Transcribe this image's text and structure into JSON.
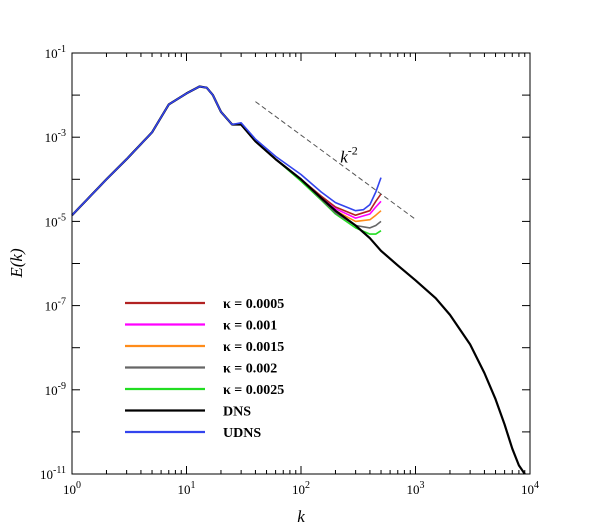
{
  "chart_data": {
    "type": "line",
    "xlabel": "k",
    "ylabel": "E(k)",
    "xscale": "log",
    "yscale": "log",
    "xlim": [
      1,
      10000
    ],
    "ylim": [
      1e-11,
      0.1
    ],
    "x_tick_labels": [
      {
        "value": 1,
        "base": "10",
        "exp": "0"
      },
      {
        "value": 10,
        "base": "10",
        "exp": "1"
      },
      {
        "value": 100,
        "base": "10",
        "exp": "2"
      },
      {
        "value": 1000,
        "base": "10",
        "exp": "3"
      },
      {
        "value": 10000,
        "base": "10",
        "exp": "4"
      }
    ],
    "y_tick_labels": [
      {
        "value": 1e-11,
        "base": "10",
        "exp": "-11"
      },
      {
        "value": 1e-09,
        "base": "10",
        "exp": "-9"
      },
      {
        "value": 1e-07,
        "base": "10",
        "exp": "-7"
      },
      {
        "value": 1e-05,
        "base": "10",
        "exp": "-5"
      },
      {
        "value": 0.001,
        "base": "10",
        "exp": "-3"
      },
      {
        "value": 0.1,
        "base": "10",
        "exp": "-1"
      }
    ],
    "grid": false,
    "legend_position": "lower-left",
    "reference_line": {
      "label_base": "k",
      "label_exp": "-2",
      "x": [
        40,
        1000
      ],
      "y": [
        0.007,
        1.12e-05
      ],
      "style": "dashed"
    },
    "series": [
      {
        "name": "κ = 0.0005",
        "color": "#b22222",
        "x": [
          1,
          2,
          3,
          5,
          7,
          10,
          13,
          15,
          17,
          20,
          25,
          30,
          40,
          60,
          100,
          150,
          200,
          300,
          400,
          450,
          500
        ],
        "y": [
          1.4e-05,
          0.0001,
          0.0003,
          0.0013,
          0.006,
          0.011,
          0.016,
          0.015,
          0.01,
          0.004,
          0.002,
          0.002,
          0.0008,
          0.0003,
          0.0001,
          4e-05,
          2.2e-05,
          1.4e-05,
          1.8e-05,
          3e-05,
          4.5e-05
        ]
      },
      {
        "name": "κ = 0.001",
        "color": "#ff00ff",
        "x": [
          1,
          2,
          3,
          5,
          7,
          10,
          13,
          15,
          17,
          20,
          25,
          30,
          40,
          60,
          100,
          150,
          200,
          300,
          400,
          450,
          500
        ],
        "y": [
          1.4e-05,
          0.0001,
          0.0003,
          0.0013,
          0.006,
          0.011,
          0.016,
          0.015,
          0.01,
          0.004,
          0.002,
          0.002,
          0.0008,
          0.0003,
          0.0001,
          3.8e-05,
          2e-05,
          1.2e-05,
          1.5e-05,
          2.2e-05,
          3e-05
        ]
      },
      {
        "name": "κ = 0.0015",
        "color": "#ff8c1a",
        "x": [
          1,
          2,
          3,
          5,
          7,
          10,
          13,
          15,
          17,
          20,
          25,
          30,
          40,
          60,
          100,
          150,
          200,
          300,
          400,
          450,
          500
        ],
        "y": [
          1.4e-05,
          0.0001,
          0.0003,
          0.0013,
          0.006,
          0.011,
          0.016,
          0.015,
          0.01,
          0.004,
          0.002,
          0.002,
          0.0008,
          0.0003,
          0.0001,
          3.6e-05,
          1.8e-05,
          1e-05,
          1.1e-05,
          1.4e-05,
          1.8e-05
        ]
      },
      {
        "name": "κ = 0.002",
        "color": "#666666",
        "x": [
          1,
          2,
          3,
          5,
          7,
          10,
          13,
          15,
          17,
          20,
          25,
          30,
          40,
          60,
          100,
          150,
          200,
          300,
          400,
          450,
          500
        ],
        "y": [
          1.4e-05,
          0.0001,
          0.0003,
          0.0013,
          0.006,
          0.011,
          0.016,
          0.015,
          0.01,
          0.004,
          0.002,
          0.002,
          0.0008,
          0.0003,
          0.0001,
          3.4e-05,
          1.6e-05,
          8e-06,
          7e-06,
          8e-06,
          1e-05
        ]
      },
      {
        "name": "κ = 0.0025",
        "color": "#22dd22",
        "x": [
          1,
          2,
          3,
          5,
          7,
          10,
          13,
          15,
          17,
          20,
          25,
          30,
          40,
          60,
          100,
          150,
          200,
          300,
          400,
          450,
          500
        ],
        "y": [
          1.4e-05,
          0.0001,
          0.0003,
          0.0013,
          0.006,
          0.011,
          0.016,
          0.015,
          0.01,
          0.004,
          0.002,
          0.002,
          0.0008,
          0.0003,
          9e-05,
          3.2e-05,
          1.5e-05,
          7e-06,
          5e-06,
          5e-06,
          6e-06
        ]
      },
      {
        "name": "DNS",
        "color": "#000000",
        "x": [
          1,
          2,
          3,
          5,
          7,
          10,
          13,
          15,
          17,
          20,
          25,
          30,
          40,
          60,
          100,
          150,
          200,
          300,
          400,
          500,
          700,
          1000,
          1500,
          2000,
          3000,
          4000,
          5000,
          6000,
          7000,
          8000,
          9000
        ],
        "y": [
          1.4e-05,
          0.0001,
          0.0003,
          0.0013,
          0.006,
          0.011,
          0.016,
          0.015,
          0.01,
          0.004,
          0.002,
          0.002,
          0.0008,
          0.0003,
          0.0001,
          3.6e-05,
          1.8e-05,
          8e-06,
          4e-06,
          2e-06,
          9e-07,
          4e-07,
          1.5e-07,
          6e-08,
          1.2e-08,
          2.5e-09,
          6e-10,
          1.5e-10,
          4e-11,
          1.6e-11,
          1e-11
        ]
      },
      {
        "name": "UDNS",
        "color": "#3344ee",
        "x": [
          1,
          2,
          3,
          5,
          7,
          10,
          13,
          15,
          17,
          20,
          25,
          30,
          40,
          60,
          100,
          150,
          200,
          300,
          350,
          400,
          450,
          500
        ],
        "y": [
          1.4e-05,
          0.0001,
          0.0003,
          0.0013,
          0.006,
          0.011,
          0.016,
          0.015,
          0.01,
          0.004,
          0.002,
          0.0022,
          0.0009,
          0.00035,
          0.00013,
          5e-05,
          2.8e-05,
          1.8e-05,
          1.9e-05,
          2.5e-05,
          5e-05,
          0.00011
        ]
      }
    ]
  }
}
